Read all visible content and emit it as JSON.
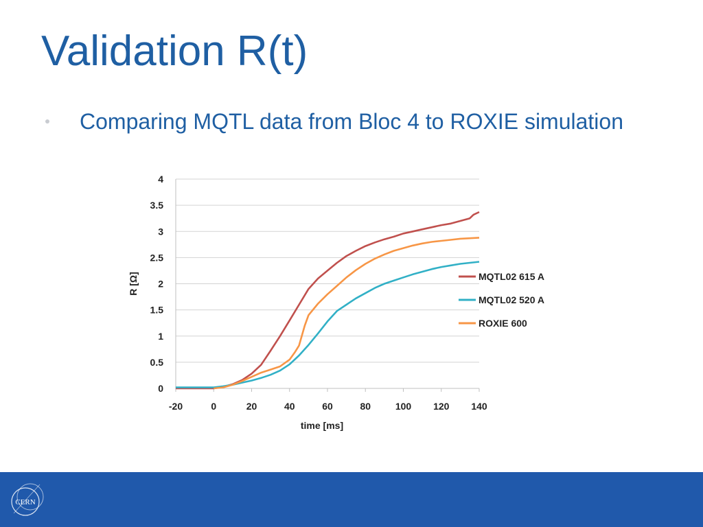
{
  "slide": {
    "title": "Validation R(t)",
    "bullet": "Comparing MQTL data from Bloc 4 to ROXIE simulation"
  },
  "footer": {
    "logo_text": "CERN",
    "background": "#2059ab"
  },
  "colors": {
    "title": "#1f5fa3",
    "grid": "#d3d3d3"
  },
  "chart_data": {
    "type": "line",
    "xlabel": "time [ms]",
    "ylabel": "R [Ω]",
    "xlim": [
      -20,
      140
    ],
    "ylim": [
      0,
      4
    ],
    "xticks": [
      "-20",
      "0",
      "20",
      "40",
      "60",
      "80",
      "100",
      "120",
      "140"
    ],
    "yticks": [
      "0",
      "0.5",
      "1",
      "1.5",
      "2",
      "2.5",
      "3",
      "3.5",
      "4"
    ],
    "grid": "horizontal",
    "legend_position": "right",
    "series": [
      {
        "name": "MQTL02 615 A",
        "color": "#c0504d",
        "x": [
          -20,
          0,
          5,
          10,
          15,
          20,
          25,
          30,
          35,
          40,
          45,
          50,
          55,
          60,
          65,
          70,
          75,
          80,
          85,
          90,
          95,
          100,
          105,
          110,
          115,
          120,
          125,
          130,
          135,
          137,
          140
        ],
        "y": [
          0,
          0,
          0.03,
          0.08,
          0.16,
          0.28,
          0.45,
          0.72,
          1.0,
          1.3,
          1.6,
          1.9,
          2.1,
          2.25,
          2.4,
          2.53,
          2.63,
          2.72,
          2.79,
          2.85,
          2.9,
          2.96,
          3.0,
          3.04,
          3.08,
          3.12,
          3.15,
          3.2,
          3.25,
          3.32,
          3.37
        ]
      },
      {
        "name": "MQTL02 520 A",
        "color": "#31b0c6",
        "x": [
          -20,
          0,
          5,
          10,
          15,
          20,
          25,
          30,
          35,
          40,
          45,
          50,
          55,
          60,
          65,
          70,
          75,
          80,
          85,
          90,
          95,
          100,
          105,
          110,
          115,
          120,
          125,
          130,
          135,
          140
        ],
        "y": [
          0.02,
          0.02,
          0.04,
          0.07,
          0.11,
          0.15,
          0.2,
          0.26,
          0.34,
          0.46,
          0.63,
          0.83,
          1.05,
          1.28,
          1.48,
          1.6,
          1.72,
          1.82,
          1.92,
          2.0,
          2.06,
          2.12,
          2.18,
          2.23,
          2.28,
          2.32,
          2.35,
          2.38,
          2.4,
          2.42
        ]
      },
      {
        "name": "ROXIE 600",
        "color": "#f79646",
        "x": [
          0,
          5,
          10,
          15,
          20,
          25,
          30,
          35,
          40,
          43,
          45,
          48,
          50,
          55,
          60,
          65,
          70,
          75,
          80,
          85,
          90,
          95,
          100,
          105,
          110,
          115,
          120,
          125,
          130,
          135,
          140
        ],
        "y": [
          0,
          0.02,
          0.07,
          0.14,
          0.22,
          0.3,
          0.36,
          0.42,
          0.55,
          0.7,
          0.82,
          1.2,
          1.4,
          1.62,
          1.8,
          1.96,
          2.12,
          2.26,
          2.38,
          2.48,
          2.56,
          2.63,
          2.68,
          2.73,
          2.77,
          2.8,
          2.82,
          2.84,
          2.86,
          2.87,
          2.88
        ]
      }
    ]
  }
}
